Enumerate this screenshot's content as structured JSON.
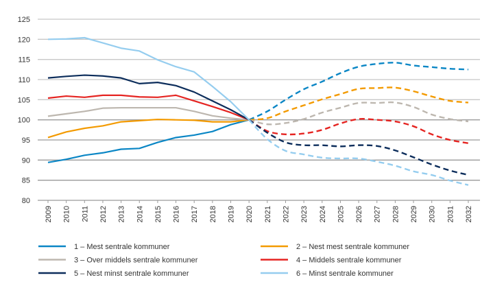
{
  "chart_data": {
    "type": "line",
    "title": "",
    "xlabel": "",
    "ylabel": "",
    "ylim": [
      80,
      125
    ],
    "yticks": [
      80,
      85,
      90,
      95,
      100,
      105,
      110,
      115,
      120,
      125
    ],
    "x": [
      "2009",
      "2010",
      "2011",
      "2012",
      "2013",
      "2014",
      "2015",
      "2016",
      "2017",
      "2018",
      "2019",
      "2020",
      "2021",
      "2022",
      "2023",
      "2024",
      "2025",
      "2026",
      "2027",
      "2028",
      "2029",
      "2030",
      "2031",
      "2032"
    ],
    "projection_start": "2020",
    "grid": true,
    "legend_placement": "bottom",
    "series": [
      {
        "name": "1 – Mest sentrale kommuner",
        "color": "#0a86c5",
        "values": [
          89.4,
          90.2,
          91.2,
          91.8,
          92.7,
          92.9,
          94.4,
          95.6,
          96.2,
          97.1,
          98.8,
          100,
          102.1,
          105.0,
          107.6,
          109.5,
          111.6,
          113.2,
          113.9,
          114.2,
          113.5,
          113.1,
          112.7,
          112.5
        ]
      },
      {
        "name": "2 – Nest mest sentrale kommuner",
        "color": "#f39a00",
        "values": [
          95.6,
          97.0,
          97.9,
          98.5,
          99.5,
          99.8,
          100.1,
          100.0,
          99.9,
          99.5,
          99.5,
          100,
          100.4,
          102.1,
          103.6,
          105.1,
          106.4,
          107.7,
          107.9,
          108.0,
          107.1,
          105.8,
          104.7,
          104.3
        ]
      },
      {
        "name": "3 – Over middels sentrale kommuner",
        "color": "#bdb7af",
        "values": [
          100.9,
          101.5,
          102.1,
          102.9,
          103.0,
          103.0,
          103.0,
          103.0,
          102.1,
          101.0,
          100.4,
          100,
          98.9,
          99.2,
          100.2,
          101.8,
          103.0,
          104.2,
          104.2,
          104.3,
          103.2,
          101.3,
          100.2,
          99.6
        ]
      },
      {
        "name": "4 – Middels sentrale kommuner",
        "color": "#e52421",
        "values": [
          105.4,
          105.9,
          105.6,
          106.1,
          106.1,
          105.7,
          105.6,
          106.1,
          104.7,
          103.3,
          101.8,
          100,
          97.2,
          96.4,
          96.6,
          97.5,
          99.1,
          100.2,
          100.0,
          99.6,
          98.4,
          96.4,
          95.0,
          94.2
        ]
      },
      {
        "name": "5 – Nest minst sentrale kommuner",
        "color": "#0c2d5b",
        "values": [
          110.4,
          110.8,
          111.1,
          110.9,
          110.4,
          109.0,
          109.3,
          108.5,
          106.9,
          104.7,
          102.5,
          100,
          96.8,
          94.4,
          93.7,
          93.7,
          93.4,
          93.7,
          93.5,
          92.4,
          90.7,
          88.9,
          87.4,
          86.3
        ]
      },
      {
        "name": "6 – Minst sentrale kommuner",
        "color": "#95cdef",
        "values": [
          120.0,
          120.1,
          120.4,
          119.1,
          117.8,
          117.1,
          114.9,
          113.2,
          111.9,
          108.3,
          104.5,
          100,
          95.2,
          92.3,
          91.4,
          90.6,
          90.4,
          90.4,
          89.6,
          88.6,
          87.2,
          86.3,
          84.9,
          83.8
        ]
      }
    ]
  }
}
